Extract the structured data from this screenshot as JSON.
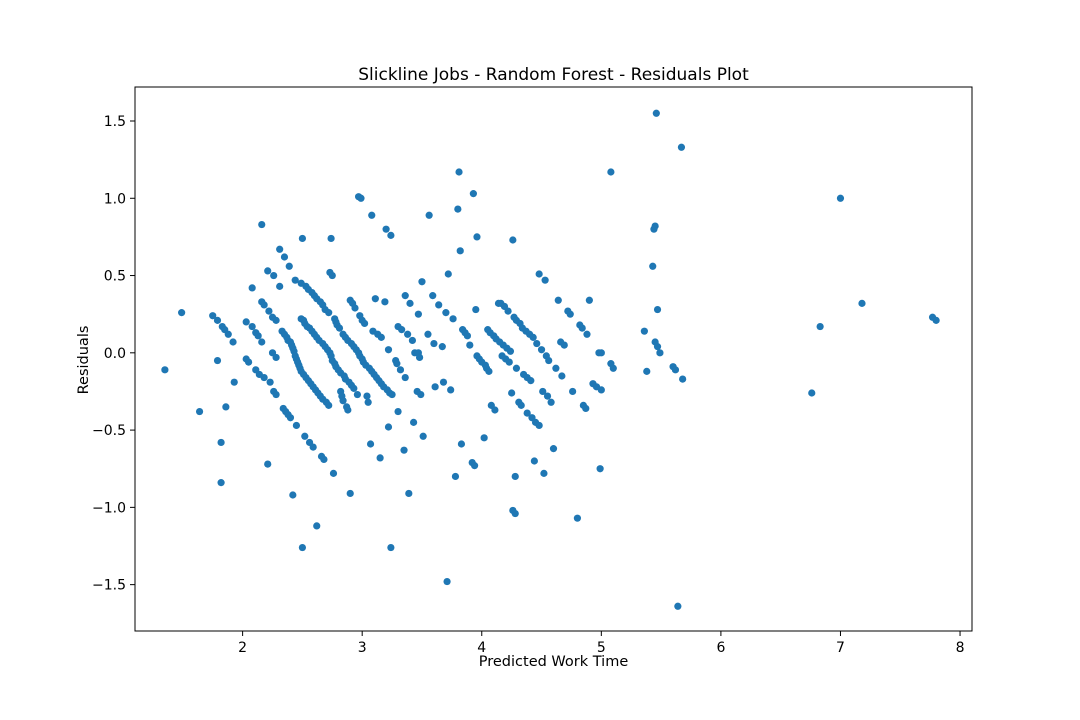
{
  "chart_data": {
    "type": "scatter",
    "title": "Slickline Jobs - Random Forest - Residuals Plot",
    "xlabel": "Predicted Work Time",
    "ylabel": "Residuals",
    "xlim": [
      1.1,
      8.1
    ],
    "ylim": [
      -1.8,
      1.72
    ],
    "xticks": [
      2,
      3,
      4,
      5,
      6,
      7,
      8
    ],
    "yticks": [
      -1.5,
      -1.0,
      -0.5,
      0.0,
      0.5,
      1.0,
      1.5
    ],
    "xtick_labels": [
      "2",
      "3",
      "4",
      "5",
      "6",
      "7",
      "8"
    ],
    "ytick_labels": [
      "−1.5",
      "−1.0",
      "−0.5",
      "0.0",
      "0.5",
      "1.0",
      "1.5"
    ],
    "grid": false,
    "marker_color": "#1f77b4",
    "points": [
      [
        1.35,
        -0.11
      ],
      [
        1.49,
        0.26
      ],
      [
        1.64,
        -0.38
      ],
      [
        1.75,
        0.24
      ],
      [
        1.79,
        0.21
      ],
      [
        1.79,
        -0.05
      ],
      [
        1.82,
        -0.58
      ],
      [
        1.82,
        -0.84
      ],
      [
        1.83,
        0.17
      ],
      [
        1.85,
        0.15
      ],
      [
        1.86,
        -0.35
      ],
      [
        1.88,
        0.12
      ],
      [
        1.92,
        0.07
      ],
      [
        1.93,
        -0.19
      ],
      [
        2.03,
        0.2
      ],
      [
        2.03,
        -0.04
      ],
      [
        2.05,
        -0.06
      ],
      [
        2.08,
        0.42
      ],
      [
        2.08,
        0.17
      ],
      [
        2.11,
        0.13
      ],
      [
        2.11,
        -0.11
      ],
      [
        2.13,
        0.11
      ],
      [
        2.14,
        -0.14
      ],
      [
        2.16,
        0.07
      ],
      [
        2.16,
        0.33
      ],
      [
        2.16,
        0.83
      ],
      [
        2.18,
        0.31
      ],
      [
        2.18,
        -0.16
      ],
      [
        2.21,
        -0.72
      ],
      [
        2.21,
        0.53
      ],
      [
        2.22,
        0.27
      ],
      [
        2.23,
        -0.19
      ],
      [
        2.25,
        0.23
      ],
      [
        2.25,
        0.0
      ],
      [
        2.26,
        0.5
      ],
      [
        2.26,
        -0.25
      ],
      [
        2.28,
        0.21
      ],
      [
        2.28,
        -0.03
      ],
      [
        2.28,
        -0.27
      ],
      [
        2.31,
        0.67
      ],
      [
        2.31,
        0.43
      ],
      [
        2.33,
        0.14
      ],
      [
        2.34,
        -0.36
      ],
      [
        2.35,
        0.12
      ],
      [
        2.35,
        0.62
      ],
      [
        2.36,
        -0.38
      ],
      [
        2.37,
        0.1
      ],
      [
        2.38,
        -0.4
      ],
      [
        2.38,
        0.08
      ],
      [
        2.39,
        0.56
      ],
      [
        2.4,
        -0.42
      ],
      [
        2.4,
        0.07
      ],
      [
        2.41,
        0.05
      ],
      [
        2.42,
        -0.92
      ],
      [
        2.42,
        0.03
      ],
      [
        2.43,
        0.01
      ],
      [
        2.44,
        -0.02
      ],
      [
        2.44,
        0.47
      ],
      [
        2.45,
        -0.04
      ],
      [
        2.45,
        -0.47
      ],
      [
        2.46,
        -0.06
      ],
      [
        2.47,
        -0.08
      ],
      [
        2.48,
        -0.1
      ],
      [
        2.49,
        0.45
      ],
      [
        2.49,
        0.22
      ],
      [
        2.49,
        -0.12
      ],
      [
        2.5,
        0.74
      ],
      [
        2.5,
        -1.26
      ],
      [
        2.51,
        0.21
      ],
      [
        2.51,
        -0.14
      ],
      [
        2.52,
        0.19
      ],
      [
        2.52,
        -0.54
      ],
      [
        2.53,
        0.43
      ],
      [
        2.53,
        -0.16
      ],
      [
        2.54,
        0.17
      ],
      [
        2.55,
        -0.18
      ],
      [
        2.55,
        0.41
      ],
      [
        2.56,
        -0.58
      ],
      [
        2.56,
        0.16
      ],
      [
        2.57,
        -0.2
      ],
      [
        2.58,
        0.39
      ],
      [
        2.58,
        0.14
      ],
      [
        2.59,
        -0.61
      ],
      [
        2.59,
        -0.22
      ],
      [
        2.6,
        0.12
      ],
      [
        2.6,
        0.37
      ],
      [
        2.61,
        -0.24
      ],
      [
        2.62,
        -1.12
      ],
      [
        2.62,
        0.35
      ],
      [
        2.62,
        0.1
      ],
      [
        2.63,
        -0.26
      ],
      [
        2.64,
        0.08
      ],
      [
        2.65,
        0.33
      ],
      [
        2.65,
        -0.28
      ],
      [
        2.66,
        -0.67
      ],
      [
        2.67,
        0.31
      ],
      [
        2.67,
        0.06
      ],
      [
        2.67,
        -0.3
      ],
      [
        2.68,
        -0.69
      ],
      [
        2.69,
        0.04
      ],
      [
        2.69,
        0.28
      ],
      [
        2.7,
        -0.32
      ],
      [
        2.71,
        0.02
      ],
      [
        2.72,
        -0.34
      ],
      [
        2.72,
        0.26
      ],
      [
        2.73,
        0.0
      ],
      [
        2.73,
        0.52
      ],
      [
        2.74,
        -0.02
      ],
      [
        2.74,
        0.74
      ],
      [
        2.75,
        0.5
      ],
      [
        2.75,
        -0.05
      ],
      [
        2.76,
        -0.78
      ],
      [
        2.77,
        0.22
      ],
      [
        2.77,
        -0.07
      ],
      [
        2.78,
        0.2
      ],
      [
        2.78,
        -0.09
      ],
      [
        2.79,
        0.18
      ],
      [
        2.8,
        -0.11
      ],
      [
        2.81,
        0.16
      ],
      [
        2.82,
        -0.13
      ],
      [
        2.82,
        -0.25
      ],
      [
        2.83,
        -0.28
      ],
      [
        2.84,
        0.12
      ],
      [
        2.84,
        -0.31
      ],
      [
        2.85,
        -0.15
      ],
      [
        2.86,
        0.1
      ],
      [
        2.86,
        -0.17
      ],
      [
        2.87,
        -0.35
      ],
      [
        2.88,
        0.08
      ],
      [
        2.88,
        -0.37
      ],
      [
        2.89,
        -0.19
      ],
      [
        2.9,
        -0.91
      ],
      [
        2.9,
        0.34
      ],
      [
        2.91,
        0.06
      ],
      [
        2.91,
        -0.21
      ],
      [
        2.92,
        0.32
      ],
      [
        2.93,
        0.04
      ],
      [
        2.93,
        -0.23
      ],
      [
        2.94,
        0.29
      ],
      [
        2.95,
        0.02
      ],
      [
        2.96,
        -0.27
      ],
      [
        2.97,
        0.0
      ],
      [
        2.97,
        1.01
      ],
      [
        2.98,
        -0.02
      ],
      [
        2.98,
        0.24
      ],
      [
        2.99,
        1.0
      ],
      [
        3.0,
        -0.04
      ],
      [
        3.0,
        0.21
      ],
      [
        3.01,
        -0.06
      ],
      [
        3.02,
        0.19
      ],
      [
        3.03,
        -0.08
      ],
      [
        3.04,
        -0.28
      ],
      [
        3.05,
        -0.32
      ],
      [
        3.06,
        -0.1
      ],
      [
        3.07,
        -0.59
      ],
      [
        3.08,
        0.89
      ],
      [
        3.08,
        -0.12
      ],
      [
        3.09,
        0.14
      ],
      [
        3.1,
        -0.14
      ],
      [
        3.11,
        0.35
      ],
      [
        3.12,
        -0.16
      ],
      [
        3.13,
        0.12
      ],
      [
        3.14,
        -0.18
      ],
      [
        3.15,
        -0.68
      ],
      [
        3.16,
        0.1
      ],
      [
        3.16,
        -0.2
      ],
      [
        3.18,
        -0.22
      ],
      [
        3.19,
        0.33
      ],
      [
        3.2,
        0.8
      ],
      [
        3.21,
        -0.24
      ],
      [
        3.22,
        -0.48
      ],
      [
        3.22,
        0.02
      ],
      [
        3.23,
        -0.26
      ],
      [
        3.24,
        0.76
      ],
      [
        3.24,
        -1.26
      ],
      [
        3.25,
        -0.27
      ],
      [
        3.28,
        -0.05
      ],
      [
        3.29,
        -0.07
      ],
      [
        3.3,
        0.17
      ],
      [
        3.3,
        -0.38
      ],
      [
        3.32,
        -0.11
      ],
      [
        3.33,
        0.15
      ],
      [
        3.35,
        -0.63
      ],
      [
        3.36,
        0.37
      ],
      [
        3.36,
        -0.16
      ],
      [
        3.38,
        0.12
      ],
      [
        3.39,
        -0.91
      ],
      [
        3.4,
        0.32
      ],
      [
        3.42,
        0.08
      ],
      [
        3.43,
        -0.45
      ],
      [
        3.44,
        0.0
      ],
      [
        3.46,
        -0.25
      ],
      [
        3.47,
        0.25
      ],
      [
        3.47,
        0.0
      ],
      [
        3.48,
        -0.03
      ],
      [
        3.49,
        -0.27
      ],
      [
        3.5,
        0.46
      ],
      [
        3.51,
        -0.54
      ],
      [
        3.55,
        0.12
      ],
      [
        3.56,
        0.89
      ],
      [
        3.59,
        0.37
      ],
      [
        3.6,
        0.06
      ],
      [
        3.61,
        -0.22
      ],
      [
        3.64,
        0.31
      ],
      [
        3.67,
        0.04
      ],
      [
        3.68,
        -0.19
      ],
      [
        3.7,
        0.26
      ],
      [
        3.71,
        -1.48
      ],
      [
        3.72,
        0.51
      ],
      [
        3.74,
        -0.24
      ],
      [
        3.76,
        0.22
      ],
      [
        3.78,
        -0.8
      ],
      [
        3.8,
        0.93
      ],
      [
        3.81,
        1.17
      ],
      [
        3.82,
        0.66
      ],
      [
        3.83,
        -0.59
      ],
      [
        3.84,
        0.15
      ],
      [
        3.86,
        0.13
      ],
      [
        3.88,
        0.11
      ],
      [
        3.9,
        0.05
      ],
      [
        3.92,
        -0.71
      ],
      [
        3.93,
        1.03
      ],
      [
        3.94,
        -0.73
      ],
      [
        3.95,
        0.28
      ],
      [
        3.96,
        -0.02
      ],
      [
        3.96,
        0.75
      ],
      [
        3.98,
        -0.04
      ],
      [
        4.0,
        -0.06
      ],
      [
        4.02,
        -0.55
      ],
      [
        4.03,
        -0.08
      ],
      [
        4.04,
        -0.1
      ],
      [
        4.05,
        0.15
      ],
      [
        4.06,
        -0.12
      ],
      [
        4.07,
        0.13
      ],
      [
        4.08,
        -0.34
      ],
      [
        4.1,
        0.11
      ],
      [
        4.11,
        -0.37
      ],
      [
        4.12,
        0.09
      ],
      [
        4.14,
        0.32
      ],
      [
        4.15,
        0.07
      ],
      [
        4.16,
        0.32
      ],
      [
        4.17,
        -0.02
      ],
      [
        4.18,
        0.05
      ],
      [
        4.19,
        0.3
      ],
      [
        4.2,
        -0.04
      ],
      [
        4.21,
        0.03
      ],
      [
        4.22,
        0.27
      ],
      [
        4.23,
        -0.06
      ],
      [
        4.24,
        0.01
      ],
      [
        4.25,
        -0.26
      ],
      [
        4.26,
        0.73
      ],
      [
        4.26,
        -1.02
      ],
      [
        4.27,
        0.23
      ],
      [
        4.28,
        -0.8
      ],
      [
        4.28,
        -1.04
      ],
      [
        4.29,
        0.21
      ],
      [
        4.29,
        -0.1
      ],
      [
        4.31,
        -0.32
      ],
      [
        4.32,
        0.19
      ],
      [
        4.33,
        -0.34
      ],
      [
        4.34,
        0.16
      ],
      [
        4.35,
        -0.14
      ],
      [
        4.37,
        0.14
      ],
      [
        4.38,
        -0.16
      ],
      [
        4.38,
        -0.39
      ],
      [
        4.4,
        0.12
      ],
      [
        4.41,
        -0.18
      ],
      [
        4.42,
        -0.42
      ],
      [
        4.43,
        0.1
      ],
      [
        4.44,
        -0.7
      ],
      [
        4.45,
        -0.45
      ],
      [
        4.46,
        0.06
      ],
      [
        4.48,
        -0.47
      ],
      [
        4.48,
        0.51
      ],
      [
        4.5,
        0.02
      ],
      [
        4.51,
        -0.25
      ],
      [
        4.52,
        -0.78
      ],
      [
        4.53,
        0.47
      ],
      [
        4.54,
        -0.02
      ],
      [
        4.55,
        -0.28
      ],
      [
        4.56,
        -0.05
      ],
      [
        4.58,
        -0.32
      ],
      [
        4.6,
        -0.62
      ],
      [
        4.62,
        -0.1
      ],
      [
        4.64,
        0.34
      ],
      [
        4.66,
        0.07
      ],
      [
        4.67,
        -0.15
      ],
      [
        4.69,
        0.05
      ],
      [
        4.72,
        0.27
      ],
      [
        4.74,
        0.25
      ],
      [
        4.76,
        -0.25
      ],
      [
        4.8,
        -1.07
      ],
      [
        4.82,
        0.18
      ],
      [
        4.84,
        0.16
      ],
      [
        4.85,
        -0.34
      ],
      [
        4.87,
        -0.36
      ],
      [
        4.88,
        0.12
      ],
      [
        4.9,
        0.34
      ],
      [
        4.93,
        -0.2
      ],
      [
        4.96,
        -0.22
      ],
      [
        4.98,
        0.0
      ],
      [
        4.99,
        -0.75
      ],
      [
        5.0,
        0.0
      ],
      [
        5.0,
        -0.24
      ],
      [
        5.08,
        1.17
      ],
      [
        5.08,
        -0.07
      ],
      [
        5.1,
        -0.1
      ],
      [
        5.36,
        0.14
      ],
      [
        5.38,
        -0.12
      ],
      [
        5.43,
        0.56
      ],
      [
        5.44,
        0.8
      ],
      [
        5.45,
        0.82
      ],
      [
        5.45,
        0.07
      ],
      [
        5.46,
        1.55
      ],
      [
        5.47,
        0.28
      ],
      [
        5.47,
        0.04
      ],
      [
        5.49,
        0.0
      ],
      [
        5.6,
        -0.09
      ],
      [
        5.62,
        -0.11
      ],
      [
        5.64,
        -1.64
      ],
      [
        5.67,
        1.33
      ],
      [
        5.68,
        -0.17
      ],
      [
        6.76,
        -0.26
      ],
      [
        6.83,
        0.17
      ],
      [
        7.0,
        1.0
      ],
      [
        7.18,
        0.32
      ],
      [
        7.77,
        0.23
      ],
      [
        7.8,
        0.21
      ]
    ]
  }
}
